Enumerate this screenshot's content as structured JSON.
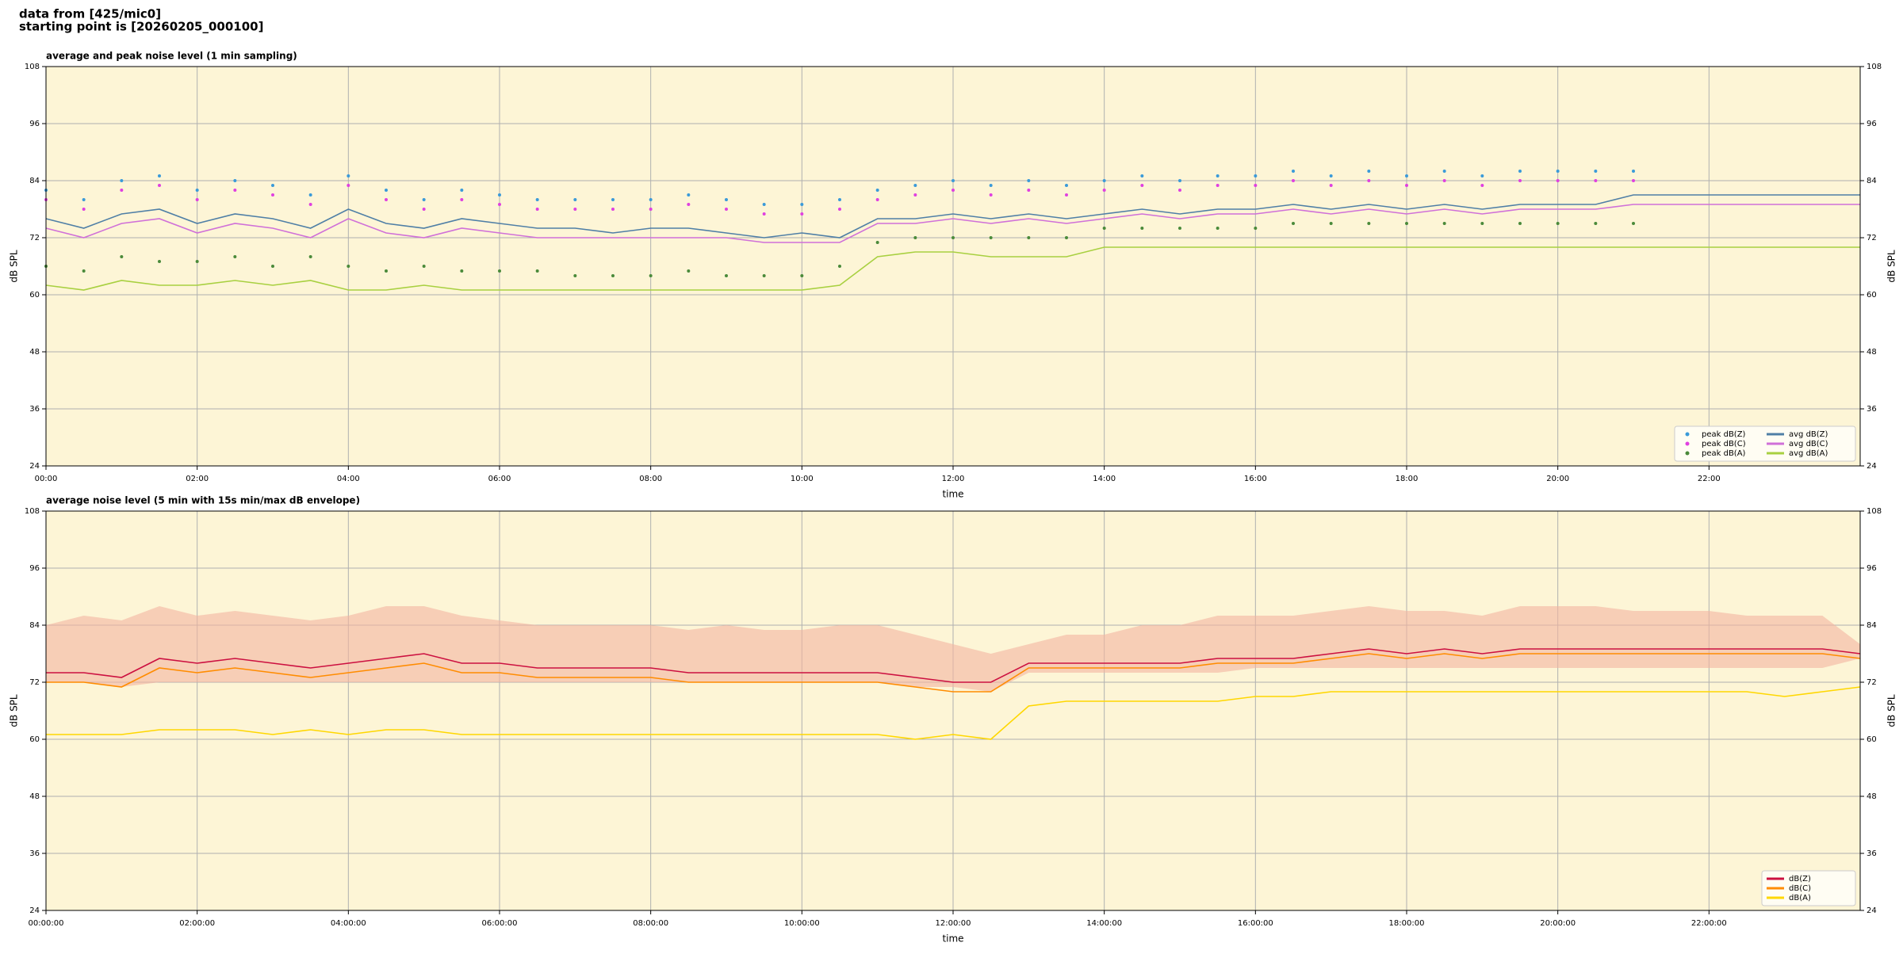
{
  "header": {
    "lines": [
      "data from [425/mic0]",
      "starting point is [20260205_000100]"
    ]
  },
  "chart_data": [
    {
      "type": "line",
      "title": "average and peak noise level (1 min sampling)",
      "xlabel": "time",
      "ylabel": "dB SPL",
      "xlim": [
        0,
        24
      ],
      "ylim": [
        24,
        108
      ],
      "yticks": [
        24,
        36,
        48,
        60,
        72,
        84,
        96,
        108
      ],
      "xticks": [
        {
          "value": 0,
          "label": "00:00"
        },
        {
          "value": 2,
          "label": "02:00"
        },
        {
          "value": 4,
          "label": "04:00"
        },
        {
          "value": 6,
          "label": "06:00"
        },
        {
          "value": 8,
          "label": "08:00"
        },
        {
          "value": 10,
          "label": "10:00"
        },
        {
          "value": 12,
          "label": "12:00"
        },
        {
          "value": 14,
          "label": "14:00"
        },
        {
          "value": 16,
          "label": "16:00"
        },
        {
          "value": 18,
          "label": "18:00"
        },
        {
          "value": 20,
          "label": "20:00"
        },
        {
          "value": 22,
          "label": "22:00"
        }
      ],
      "grid": true,
      "legend": "lower right",
      "legend_columns": 2,
      "x": [
        0,
        0.5,
        1,
        1.5,
        2,
        2.5,
        3,
        3.5,
        4,
        4.5,
        5,
        5.5,
        6,
        6.5,
        7,
        7.5,
        8,
        8.5,
        9,
        9.5,
        10,
        10.5,
        11,
        11.5,
        12,
        12.5,
        13,
        13.5,
        14,
        14.5,
        15,
        15.5,
        16,
        16.5,
        17,
        17.5,
        18,
        18.5,
        19,
        19.5,
        20,
        20.5,
        21,
        24
      ],
      "series": [
        {
          "name": "peak dB(Z)",
          "style": "dots",
          "color": "#3a9ad9",
          "values": [
            82,
            80,
            84,
            85,
            82,
            84,
            83,
            81,
            85,
            82,
            80,
            82,
            81,
            80,
            80,
            80,
            80,
            81,
            80,
            79,
            79,
            80,
            82,
            83,
            84,
            83,
            84,
            83,
            84,
            85,
            84,
            85,
            85,
            86,
            85,
            86,
            85,
            86,
            85,
            86,
            86,
            86,
            86,
            null
          ]
        },
        {
          "name": "peak dB(C)",
          "style": "dots",
          "color": "#e040e0",
          "values": [
            80,
            78,
            82,
            83,
            80,
            82,
            81,
            79,
            83,
            80,
            78,
            80,
            79,
            78,
            78,
            78,
            78,
            79,
            78,
            77,
            77,
            78,
            80,
            81,
            82,
            81,
            82,
            81,
            82,
            83,
            82,
            83,
            83,
            84,
            83,
            84,
            83,
            84,
            83,
            84,
            84,
            84,
            84,
            null
          ]
        },
        {
          "name": "peak dB(A)",
          "style": "dots",
          "color": "#4a8a3a",
          "values": [
            66,
            65,
            68,
            67,
            67,
            68,
            66,
            68,
            66,
            65,
            66,
            65,
            65,
            65,
            64,
            64,
            64,
            65,
            64,
            64,
            64,
            66,
            71,
            72,
            72,
            72,
            72,
            72,
            74,
            74,
            74,
            74,
            74,
            75,
            75,
            75,
            75,
            75,
            75,
            75,
            75,
            75,
            75,
            null
          ]
        },
        {
          "name": "avg dB(Z)",
          "style": "line",
          "color": "#4f7fa6",
          "values": [
            76,
            74,
            77,
            78,
            75,
            77,
            76,
            74,
            78,
            75,
            74,
            76,
            75,
            74,
            74,
            73,
            74,
            74,
            73,
            72,
            73,
            72,
            76,
            76,
            77,
            76,
            77,
            76,
            77,
            78,
            77,
            78,
            78,
            79,
            78,
            79,
            78,
            79,
            78,
            79,
            79,
            79,
            81,
            81
          ]
        },
        {
          "name": "avg dB(C)",
          "style": "line",
          "color": "#d070d8",
          "values": [
            74,
            72,
            75,
            76,
            73,
            75,
            74,
            72,
            76,
            73,
            72,
            74,
            73,
            72,
            72,
            72,
            72,
            72,
            72,
            71,
            71,
            71,
            75,
            75,
            76,
            75,
            76,
            75,
            76,
            77,
            76,
            77,
            77,
            78,
            77,
            78,
            77,
            78,
            77,
            78,
            78,
            78,
            79,
            79
          ]
        },
        {
          "name": "avg dB(A)",
          "style": "line",
          "color": "#a8d040",
          "values": [
            62,
            61,
            63,
            62,
            62,
            63,
            62,
            63,
            61,
            61,
            62,
            61,
            61,
            61,
            61,
            61,
            61,
            61,
            61,
            61,
            61,
            62,
            68,
            69,
            69,
            68,
            68,
            68,
            70,
            70,
            70,
            70,
            70,
            70,
            70,
            70,
            70,
            70,
            70,
            70,
            70,
            70,
            70,
            70
          ]
        }
      ]
    },
    {
      "type": "line",
      "title": "average noise level (5 min with 15s min/max dB envelope)",
      "xlabel": "time",
      "ylabel": "dB SPL",
      "xlim": [
        0,
        24
      ],
      "ylim": [
        24,
        108
      ],
      "yticks": [
        24,
        36,
        48,
        60,
        72,
        84,
        96,
        108
      ],
      "xticks": [
        {
          "value": 0,
          "label": "00:00:00"
        },
        {
          "value": 2,
          "label": "02:00:00"
        },
        {
          "value": 4,
          "label": "04:00:00"
        },
        {
          "value": 6,
          "label": "06:00:00"
        },
        {
          "value": 8,
          "label": "08:00:00"
        },
        {
          "value": 10,
          "label": "10:00:00"
        },
        {
          "value": 12,
          "label": "12:00:00"
        },
        {
          "value": 14,
          "label": "14:00:00"
        },
        {
          "value": 16,
          "label": "16:00:00"
        },
        {
          "value": 18,
          "label": "18:00:00"
        },
        {
          "value": 20,
          "label": "20:00:00"
        },
        {
          "value": 22,
          "label": "22:00:00"
        }
      ],
      "grid": true,
      "legend": "lower right",
      "legend_columns": 1,
      "x": [
        0,
        0.5,
        1,
        1.5,
        2,
        2.5,
        3,
        3.5,
        4,
        4.5,
        5,
        5.5,
        6,
        6.5,
        7,
        7.5,
        8,
        8.5,
        9,
        9.5,
        10,
        10.5,
        11,
        11.5,
        12,
        12.5,
        13,
        13.5,
        14,
        14.5,
        15,
        15.5,
        16,
        16.5,
        17,
        17.5,
        18,
        18.5,
        19,
        19.5,
        20,
        20.5,
        21,
        21.5,
        22,
        22.5,
        23,
        23.5,
        24
      ],
      "envelope": {
        "color": "#f4b4a0",
        "max": [
          84,
          86,
          85,
          88,
          86,
          87,
          86,
          85,
          86,
          88,
          88,
          86,
          85,
          84,
          84,
          84,
          84,
          83,
          84,
          83,
          83,
          84,
          84,
          82,
          80,
          78,
          80,
          82,
          82,
          84,
          84,
          86,
          86,
          86,
          87,
          88,
          87,
          87,
          86,
          88,
          88,
          88,
          87,
          87,
          87,
          86,
          86,
          86,
          80
        ],
        "min": [
          72,
          72,
          71,
          72,
          72,
          72,
          72,
          72,
          72,
          72,
          72,
          72,
          72,
          72,
          72,
          72,
          72,
          72,
          72,
          72,
          72,
          72,
          72,
          71,
          71,
          70,
          74,
          74,
          74,
          74,
          74,
          74,
          75,
          75,
          75,
          75,
          75,
          75,
          75,
          75,
          75,
          75,
          75,
          75,
          75,
          75,
          75,
          75,
          77
        ]
      },
      "series": [
        {
          "name": "dB(Z)",
          "style": "line",
          "color": "#cc1040",
          "values": [
            74,
            74,
            73,
            77,
            76,
            77,
            76,
            75,
            76,
            77,
            78,
            76,
            76,
            75,
            75,
            75,
            75,
            74,
            74,
            74,
            74,
            74,
            74,
            73,
            72,
            72,
            76,
            76,
            76,
            76,
            76,
            77,
            77,
            77,
            78,
            79,
            78,
            79,
            78,
            79,
            79,
            79,
            79,
            79,
            79,
            79,
            79,
            79,
            78
          ]
        },
        {
          "name": "dB(C)",
          "style": "line",
          "color": "#ff8c00",
          "values": [
            72,
            72,
            71,
            75,
            74,
            75,
            74,
            73,
            74,
            75,
            76,
            74,
            74,
            73,
            73,
            73,
            73,
            72,
            72,
            72,
            72,
            72,
            72,
            71,
            70,
            70,
            75,
            75,
            75,
            75,
            75,
            76,
            76,
            76,
            77,
            78,
            77,
            78,
            77,
            78,
            78,
            78,
            78,
            78,
            78,
            78,
            78,
            78,
            77
          ]
        },
        {
          "name": "dB(A)",
          "style": "line",
          "color": "#ffd700",
          "values": [
            61,
            61,
            61,
            62,
            62,
            62,
            61,
            62,
            61,
            62,
            62,
            61,
            61,
            61,
            61,
            61,
            61,
            61,
            61,
            61,
            61,
            61,
            61,
            60,
            61,
            60,
            67,
            68,
            68,
            68,
            68,
            68,
            69,
            69,
            70,
            70,
            70,
            70,
            70,
            70,
            70,
            70,
            70,
            70,
            70,
            70,
            69,
            70,
            71
          ]
        }
      ]
    }
  ]
}
